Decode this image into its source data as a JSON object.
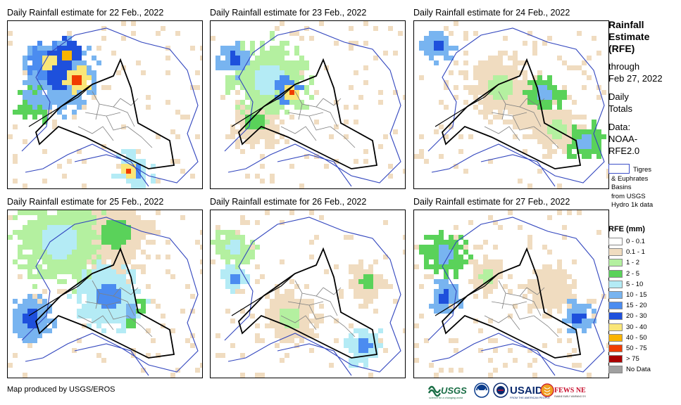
{
  "panels": [
    {
      "title": "Daily Rainfall estimate for 22 Feb., 2022"
    },
    {
      "title": "Daily Rainfall estimate for 23 Feb., 2022"
    },
    {
      "title": "Daily Rainfall estimate for 24 Feb., 2022"
    },
    {
      "title": "Daily Rainfall estimate for 25 Feb., 2022"
    },
    {
      "title": "Daily Rainfall estimate for 26 Feb., 2022"
    },
    {
      "title": "Daily Rainfall estimate for 27 Feb., 2022"
    }
  ],
  "sidebar": {
    "heading": [
      "Rainfall",
      "Estimate",
      "(RFE)"
    ],
    "through_label": "through",
    "through_date": "Feb 27, 2022",
    "totals": [
      "Daily",
      "Totals"
    ],
    "data_label": [
      "Data:",
      "NOAA-",
      "RFE2.0"
    ],
    "basins_note": [
      "Tigres",
      "& Euphrates",
      "Basins",
      "from USGS",
      "Hydro 1k data"
    ],
    "legend_title": "RFE (mm)",
    "legend": [
      {
        "label": "0 - 0.1",
        "color": "#ffffff"
      },
      {
        "label": "0.1 - 1",
        "color": "#f0dcc0"
      },
      {
        "label": "1 - 2",
        "color": "#b4f0a0"
      },
      {
        "label": "2 - 5",
        "color": "#5ad25a"
      },
      {
        "label": "5 - 10",
        "color": "#b4ebf5"
      },
      {
        "label": "10 - 15",
        "color": "#78b4f0"
      },
      {
        "label": "15 - 20",
        "color": "#4b8cf0"
      },
      {
        "label": "20 - 30",
        "color": "#1e50dc"
      },
      {
        "label": "30 - 40",
        "color": "#fae678"
      },
      {
        "label": "40 - 50",
        "color": "#fab400"
      },
      {
        "label": "50 - 75",
        "color": "#f03c00"
      },
      {
        "label": "> 75",
        "color": "#aa0000"
      },
      {
        "label": "No Data",
        "color": "#a0a0a0"
      }
    ]
  },
  "footer": {
    "credit": "Map produced by USGS/EROS"
  },
  "logos": [
    {
      "text": "USGS",
      "subtext": "science for a changing world",
      "color": "#1a6e46"
    },
    {
      "text": "USAID",
      "subtext": "FROM THE AMERICAN PEOPLE",
      "color": "#0a2a6e",
      "accent": "#c8102e"
    },
    {
      "text": "FEWS NET",
      "subtext": "FAMINE EARLY WARNING SYSTEMS NETWORK",
      "color": "#c8102e"
    }
  ]
}
